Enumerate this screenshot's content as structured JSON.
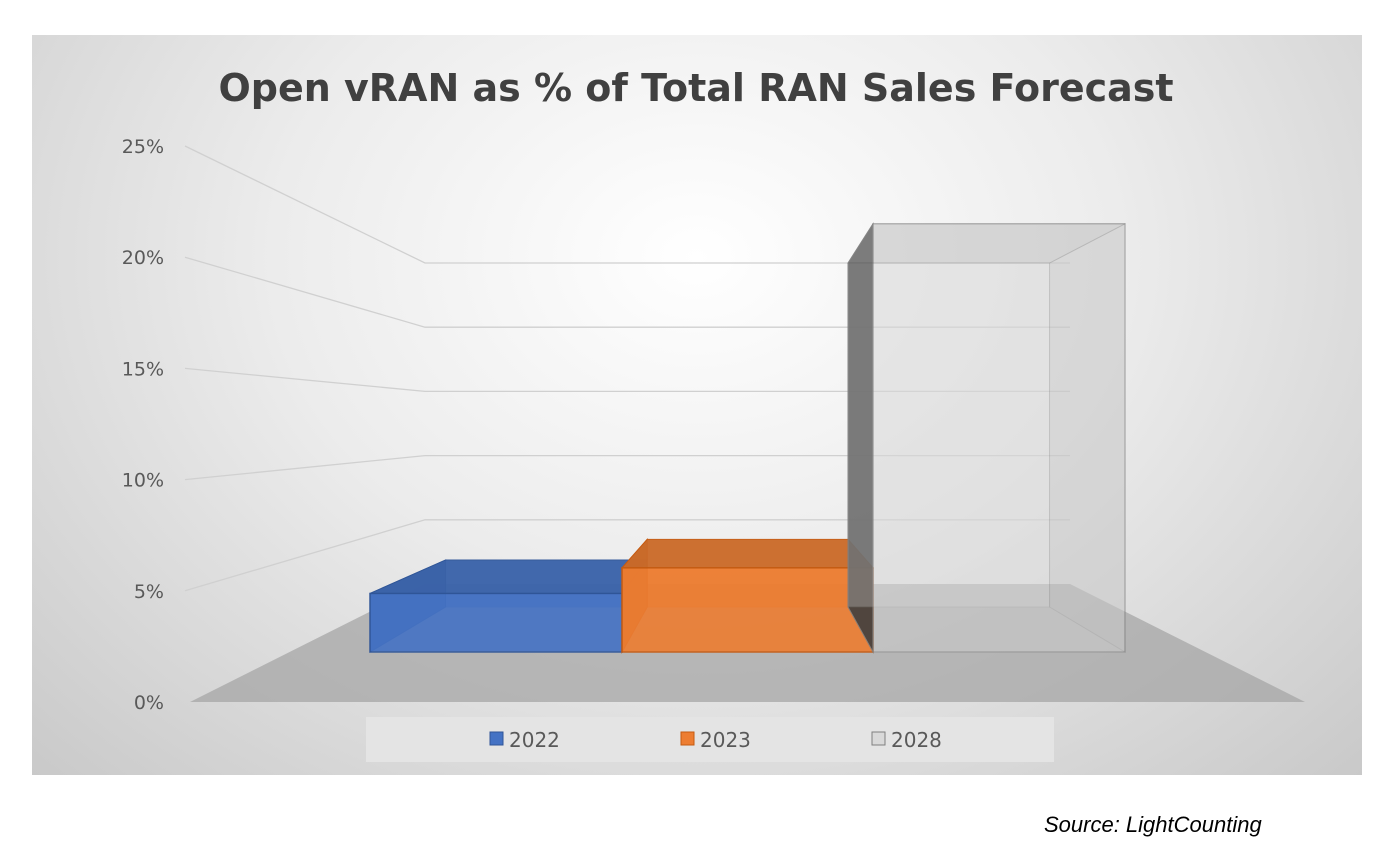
{
  "chart_data": {
    "type": "bar",
    "title": "Open vRAN as % of Total RAN Sales Forecast",
    "categories": [
      "2022",
      "2023",
      "2028"
    ],
    "values": [
      3.2,
      4.6,
      23.4
    ],
    "unit": "%",
    "ylim": [
      0,
      25
    ],
    "yticks": [
      "0%",
      "5%",
      "10%",
      "15%",
      "20%",
      "25%"
    ],
    "xlabel": "",
    "ylabel": "",
    "grid": true,
    "legend": "bottom",
    "legend_entries": [
      "2022",
      "2023",
      "2028"
    ],
    "colors": [
      "#4472c4",
      "#ed7d31",
      "#bfbfbf"
    ],
    "style": "3d-bar"
  },
  "source": "Source: LightCounting"
}
